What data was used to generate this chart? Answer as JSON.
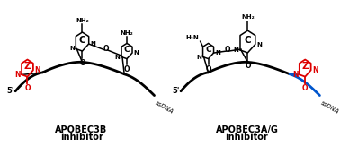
{
  "background_color": "#ffffff",
  "fig_width": 3.78,
  "fig_height": 1.63,
  "dpi": 100,
  "left_label_line1": "APOBEC3B",
  "left_label_line2": "inhibitor",
  "right_label_line1": "APOBEC3A/G",
  "right_label_line2": "inhibitor",
  "label_fontsize": 7.0,
  "label_fontweight": "bold",
  "black": "#000000",
  "red": "#dd0000",
  "blue": "#0055cc",
  "ssdna_fontsize": 5.0,
  "prime_fontsize": 6.0,
  "lw_backbone": 2.0,
  "lw_struct": 1.1
}
